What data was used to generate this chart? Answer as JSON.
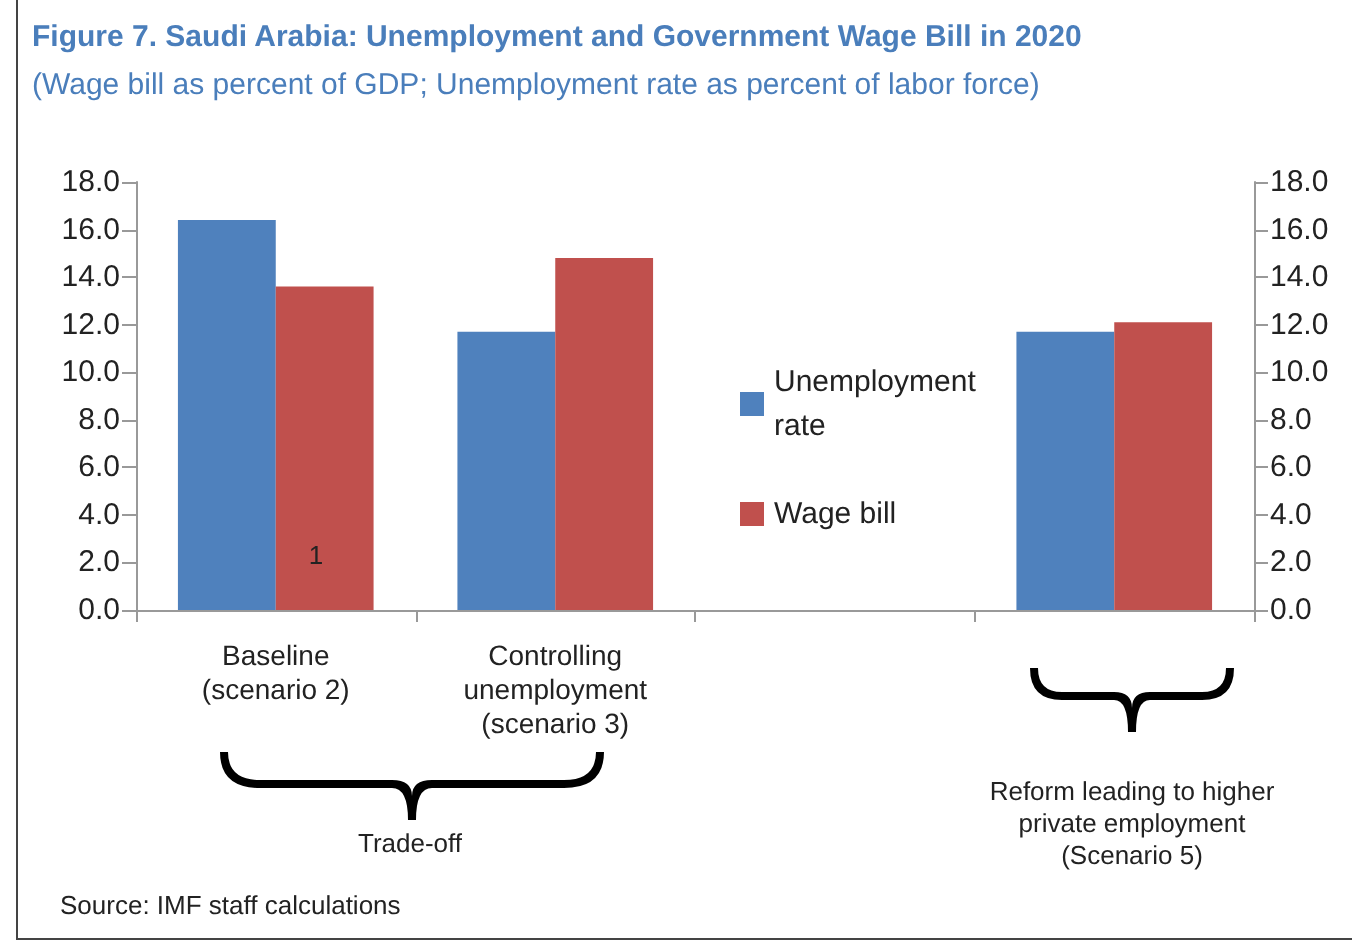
{
  "chart_data": {
    "type": "bar",
    "title": "Figure 7. Saudi Arabia: Unemployment and Government Wage Bill in 2020",
    "subtitle": "(Wage bill as percent of GDP; Unemployment rate as percent of labor force)",
    "categories": [
      "Baseline\n(scenario 2)",
      "Controlling\nunemployment\n(scenario 3)",
      null,
      null
    ],
    "series": [
      {
        "name": "Unemployment\nrate",
        "color": "#4f81bd",
        "values": [
          16.4,
          11.7,
          null,
          11.7
        ]
      },
      {
        "name": "Wage bill",
        "color": "#c0504d",
        "values": [
          13.6,
          14.8,
          null,
          12.1
        ]
      }
    ],
    "ylim": [
      0,
      18
    ],
    "yticks": [
      {
        "value": 0,
        "label": "0.0"
      },
      {
        "value": 2,
        "label": "2.0"
      },
      {
        "value": 4,
        "label": "4.0"
      },
      {
        "value": 6,
        "label": "6.0"
      },
      {
        "value": 8,
        "label": "8.0"
      },
      {
        "value": 10,
        "label": "10.0"
      },
      {
        "value": 12,
        "label": "12.0"
      },
      {
        "value": 14,
        "label": "14.0"
      },
      {
        "value": 16,
        "label": "16.0"
      },
      {
        "value": 18,
        "label": "18.0"
      }
    ],
    "y2lim": [
      0,
      18
    ],
    "y2ticks": [
      {
        "value": 0,
        "label": "0.0"
      },
      {
        "value": 2,
        "label": "2.0"
      },
      {
        "value": 4,
        "label": "4.0"
      },
      {
        "value": 6,
        "label": "6.0"
      },
      {
        "value": 8,
        "label": "8.0"
      },
      {
        "value": 10,
        "label": "10.0"
      },
      {
        "value": 12,
        "label": "12.0"
      },
      {
        "value": 14,
        "label": "14.0"
      },
      {
        "value": 16,
        "label": "16.0"
      },
      {
        "value": 18,
        "label": "18.0"
      }
    ],
    "grid": false,
    "legend": "right",
    "annotations": [
      "1",
      "Trade-off",
      "Reform leading to higher\nprivate employment\n(Scenario 5)",
      "Source: IMF staff calculations"
    ]
  }
}
